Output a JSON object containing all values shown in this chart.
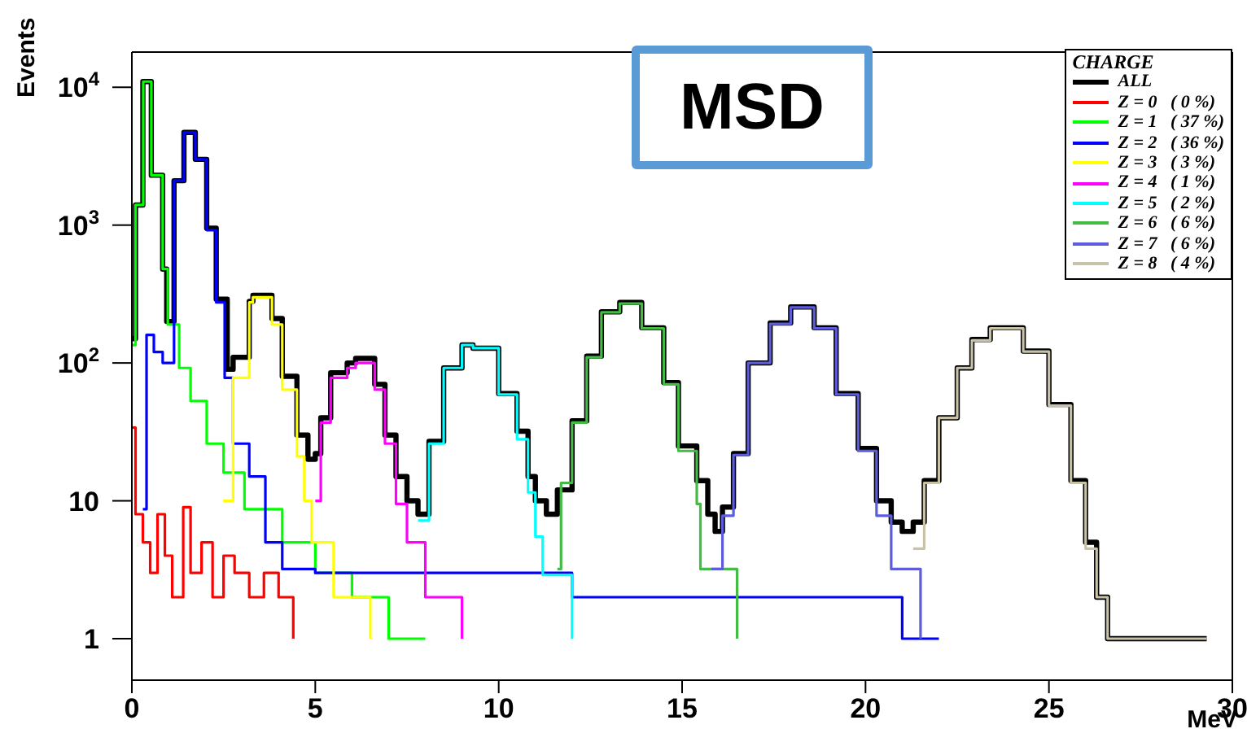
{
  "chart_data": {
    "type": "step",
    "xlabel": "MeV",
    "ylabel": "Events",
    "log": "y",
    "legend": "top right",
    "legend_title": "CHARGE",
    "annotations": [
      "MSD"
    ],
    "xlim": [
      0,
      30
    ],
    "xticks": [
      0,
      5,
      10,
      15,
      20,
      25,
      30
    ],
    "ylim": [
      0.5,
      18000
    ],
    "yticks": [
      1,
      10,
      {
        "value": 100,
        "label": "10$^{2}$"
      },
      {
        "value": 1000,
        "label": "10$^{3}$"
      },
      {
        "value": 10000,
        "label": "10$^{4}$"
      }
    ],
    "series": [
      {
        "name": "ALL",
        "color": "#000000",
        "x": [
          0,
          0.1,
          0.3,
          0.53,
          0.84,
          0.95,
          1.15,
          1.42,
          1.73,
          2.04,
          2.3,
          2.6,
          2.76,
          3.2,
          3.3,
          3.82,
          4.1,
          4.5,
          4.8,
          5.0,
          5.15,
          5.42,
          5.87,
          6.1,
          6.62,
          6.9,
          7.2,
          7.5,
          7.8,
          8.1,
          8.5,
          9.0,
          9.3,
          10.0,
          10.5,
          10.8,
          11.0,
          11.3,
          11.6,
          12.0,
          12.4,
          12.8,
          13.3,
          13.9,
          14.5,
          14.9,
          15.4,
          15.7,
          15.9,
          16.1,
          16.4,
          16.8,
          17.4,
          17.96,
          18.6,
          19.2,
          19.8,
          20.3,
          20.7,
          21.0,
          21.3,
          21.6,
          22.0,
          22.5,
          22.9,
          23.4,
          24.3,
          25.0,
          25.6,
          26.0,
          26.3,
          26.6,
          27.0,
          28.5,
          29.3
        ],
        "values": [
          150,
          1400,
          11000,
          2300,
          480,
          200,
          2100,
          4700,
          3000,
          950,
          290,
          90,
          110,
          280,
          310,
          210,
          80,
          30,
          20,
          22,
          40,
          85,
          100,
          108,
          70,
          30,
          15,
          10,
          8,
          27,
          92,
          135,
          128,
          60,
          32,
          15,
          10,
          8,
          12,
          38,
          112,
          235,
          275,
          180,
          72,
          25,
          14,
          8,
          6,
          9,
          22,
          100,
          195,
          255,
          180,
          60,
          24,
          10,
          7,
          6,
          7,
          14,
          40,
          92,
          148,
          180,
          122,
          50,
          14,
          5,
          2,
          1,
          1,
          1,
          1
        ]
      },
      {
        "name": "Z = 0   ( 0 %)",
        "color": "#ff0000",
        "x": [
          0,
          0.1,
          0.3,
          0.5,
          0.7,
          0.9,
          1.1,
          1.4,
          1.6,
          1.9,
          2.2,
          2.5,
          2.8,
          3.2,
          3.6,
          4.0,
          4.4
        ],
        "values": [
          34,
          8,
          5,
          3,
          8,
          4,
          2,
          9,
          3,
          5,
          2,
          4,
          3,
          2,
          3,
          2,
          1
        ]
      },
      {
        "name": "Z = 1   ( 37 %)",
        "color": "#00ff00",
        "x": [
          0,
          0.1,
          0.31,
          0.53,
          0.84,
          0.98,
          1.29,
          1.6,
          2.04,
          2.5,
          3.07,
          4.1,
          5.0,
          6.0,
          7.0,
          8.0
        ],
        "values": [
          135,
          1400,
          11000,
          2300,
          480,
          190,
          92,
          53,
          26,
          16,
          8.7,
          5,
          3,
          2,
          1,
          1
        ]
      },
      {
        "name": "Z = 2   ( 36 %)",
        "color": "#0000ff",
        "x": [
          0.3,
          0.4,
          0.6,
          0.84,
          1.15,
          1.42,
          1.73,
          2.04,
          2.3,
          2.53,
          2.76,
          3.2,
          3.64,
          4.1,
          5.0,
          6.0,
          7.0,
          8.0,
          10.0,
          12.0,
          15.0,
          18.0,
          20.0,
          21.0,
          22.0
        ],
        "values": [
          8.7,
          160,
          120,
          100,
          2100,
          4700,
          3000,
          920,
          275,
          78,
          26,
          15,
          5,
          3.2,
          3,
          3,
          3,
          3,
          3,
          2,
          2,
          2,
          2,
          1,
          1
        ]
      },
      {
        "name": "Z = 3   ( 3 %)",
        "color": "#ffff00",
        "x": [
          2.49,
          2.76,
          3.2,
          3.3,
          3.82,
          4.1,
          4.5,
          4.7,
          4.9,
          5.5,
          6.5
        ],
        "values": [
          10,
          78,
          275,
          300,
          190,
          64,
          21,
          10,
          5,
          2,
          1
        ]
      },
      {
        "name": "Z = 4   ( 1 %)",
        "color": "#ff00ff",
        "x": [
          5.0,
          5.15,
          5.42,
          5.87,
          6.1,
          6.62,
          6.9,
          7.2,
          7.5,
          8.0,
          9.0
        ],
        "values": [
          10,
          37,
          78,
          92,
          100,
          64,
          26,
          9.5,
          5,
          2,
          1
        ]
      },
      {
        "name": "Z = 5   ( 2 %)",
        "color": "#00ffff",
        "x": [
          7.8,
          8.1,
          8.5,
          9.0,
          9.3,
          10.0,
          10.5,
          10.8,
          11.0,
          11.2,
          12.0
        ],
        "values": [
          7.2,
          26,
          92,
          135,
          128,
          59,
          28,
          11.5,
          5.5,
          2.9,
          1
        ]
      },
      {
        "name": "Z = 6   ( 6 %)",
        "color": "#44bb44",
        "x": [
          11.6,
          11.7,
          12.0,
          12.4,
          12.8,
          13.3,
          13.9,
          14.5,
          14.9,
          15.4,
          15.5,
          16.5
        ],
        "values": [
          3.2,
          13.5,
          37,
          110,
          233,
          270,
          178,
          70,
          23,
          9.5,
          3.2,
          1
        ]
      },
      {
        "name": "Z = 7   ( 6 %)",
        "color": "#5c5cdd",
        "x": [
          15.8,
          16.1,
          16.4,
          16.8,
          17.4,
          17.96,
          18.6,
          19.2,
          19.8,
          20.3,
          20.7,
          21.5
        ],
        "values": [
          3.2,
          7.8,
          21.5,
          100,
          192,
          253,
          178,
          59,
          23,
          7.8,
          3.2,
          1
        ]
      },
      {
        "name": "Z = 8   ( 4 %)",
        "color": "#c8c3a8",
        "x": [
          21.3,
          21.6,
          22.0,
          22.5,
          22.9,
          23.4,
          24.3,
          25.0,
          25.6,
          26.0,
          26.3,
          26.6,
          29.3
        ],
        "values": [
          4.5,
          13.5,
          40,
          92,
          146,
          178,
          121,
          49,
          13.5,
          4.5,
          2,
          1,
          1
        ]
      }
    ]
  }
}
